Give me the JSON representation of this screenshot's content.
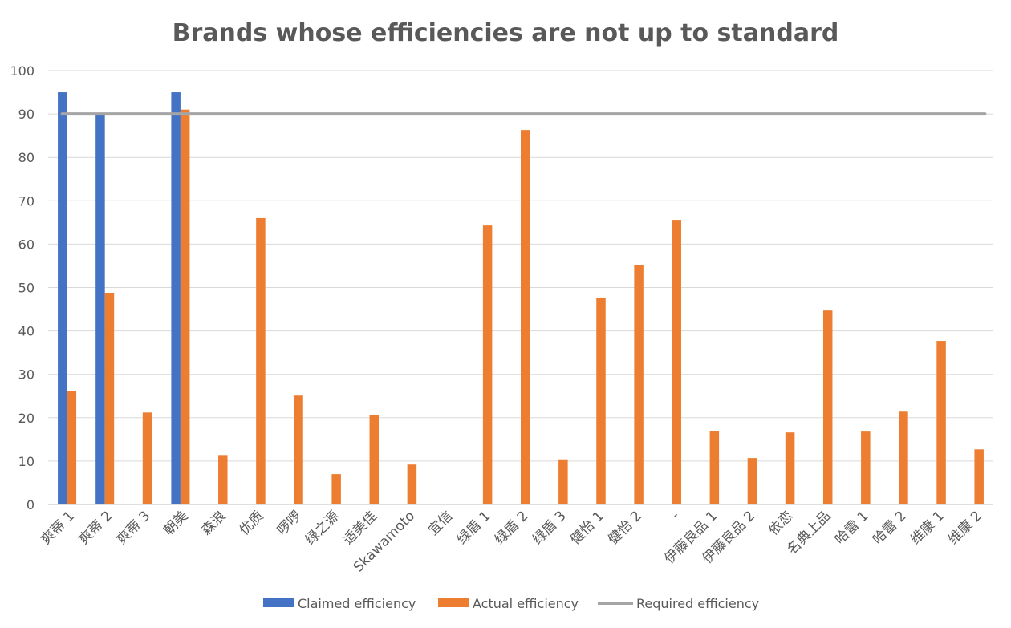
{
  "chart_data": {
    "type": "bar",
    "title": "Brands whose efficiencies are not up to standard",
    "xlabel": "",
    "ylabel": "",
    "ylim": [
      0,
      100
    ],
    "yticks": [
      0,
      10,
      20,
      30,
      40,
      50,
      60,
      70,
      80,
      90,
      100
    ],
    "grid": true,
    "legend_position": "bottom",
    "categories": [
      "爽蒂 1",
      "爽蒂 2",
      "爽蒂 3",
      "朝美",
      "森浪",
      "优质",
      "啰啰",
      "绿之源",
      "适美佳",
      "Skawamoto",
      "宜信",
      "绿盾 1",
      "绿盾 2",
      "绿盾 3",
      "健怡 1",
      "健怡 2",
      "-",
      "伊藤良品 1",
      "伊藤良品 2",
      "依恋",
      "名典上品",
      "哈雷 1",
      "哈雷 2",
      "维康 1",
      "维康 2"
    ],
    "series": [
      {
        "name": "Claimed efficiency",
        "kind": "bar",
        "color": "#4472C4",
        "values": [
          95,
          90,
          null,
          95,
          null,
          null,
          null,
          null,
          null,
          null,
          null,
          null,
          null,
          null,
          null,
          null,
          null,
          null,
          null,
          null,
          null,
          null,
          null,
          null,
          null
        ]
      },
      {
        "name": "Actual efficiency",
        "kind": "bar",
        "color": "#ED7D31",
        "values": [
          26.2,
          48.8,
          21.2,
          91,
          11.4,
          66,
          25.1,
          7,
          20.6,
          9.2,
          null,
          64.3,
          86.3,
          10.4,
          47.7,
          55.2,
          65.6,
          17,
          10.7,
          16.6,
          44.7,
          16.8,
          21.4,
          37.7,
          12.7
        ]
      },
      {
        "name": "Required efficiency",
        "kind": "line",
        "color": "#A5A5A5",
        "values": [
          90,
          90,
          90,
          90,
          90,
          90,
          90,
          90,
          90,
          90,
          90,
          90,
          90,
          90,
          90,
          90,
          90,
          90,
          90,
          90,
          90,
          90,
          90,
          90,
          90
        ]
      }
    ]
  }
}
